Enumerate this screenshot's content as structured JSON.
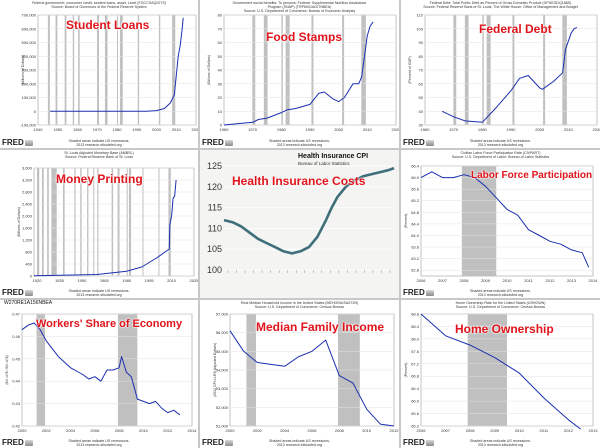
{
  "fred_label": "FRED",
  "footer_text": "Shaded areas indicate US recessions.\n2013 research.stlouisfed.org",
  "colors": {
    "line": "#1c2fb0",
    "recession": "#c0c0c0",
    "headline": "#e0141b",
    "cpi_line": "#3f6f7a"
  },
  "chart_data": [
    {
      "id": "student",
      "type": "line",
      "headline": "Student Loans",
      "header": "Federal government; consumer credit, student loans, asset, Level (FGCCSAQ027S)\nSource: Board of Governors of the Federal Reserve System",
      "ylabel": "(Millions of Dollars)",
      "x_ticks": [
        "1940",
        "1950",
        "1960",
        "1970",
        "1980",
        "1990",
        "2000",
        "2010",
        "2020"
      ],
      "y_ticks": [
        "-100,000",
        "0",
        "100,000",
        "200,000",
        "300,000",
        "400,000",
        "500,000",
        "600,000",
        "700,000"
      ],
      "xlim": [
        1940,
        2020
      ],
      "ylim": [
        -100000,
        700000
      ],
      "recessions": [
        [
          1945,
          1946
        ],
        [
          1948.9,
          1949.8
        ],
        [
          1953.5,
          1954.4
        ],
        [
          1957.6,
          1958.3
        ],
        [
          1960.3,
          1961.1
        ],
        [
          1969.9,
          1970.9
        ],
        [
          1973.9,
          1975.2
        ],
        [
          1980,
          1980.5
        ],
        [
          1981.5,
          1982.9
        ],
        [
          1990.5,
          1991.2
        ],
        [
          2001.2,
          2001.9
        ],
        [
          2007.9,
          2009.5
        ]
      ],
      "x": [
        1946,
        1970,
        1995,
        2000,
        2004,
        2007,
        2009,
        2010,
        2011,
        2012,
        2013,
        2013.5
      ],
      "values": [
        0,
        0,
        0,
        5000,
        20000,
        60000,
        120000,
        260000,
        400000,
        480000,
        600000,
        680000
      ]
    },
    {
      "id": "food",
      "type": "line",
      "headline": "Food Stamps",
      "header": "Government social benefits: To persons: Federal: Supplemental Nutrition Assistance\nProgram (SNAP) (TRP6001A027NBEA)\nSource: U.S. Department of Commerce: Bureau of Economic Analysis",
      "ylabel": "(Billions of Dollars)",
      "x_ticks": [
        "1960",
        "1970",
        "1980",
        "1990",
        "2000",
        "2010",
        "2020"
      ],
      "y_ticks": [
        "0",
        "10",
        "20",
        "30",
        "40",
        "50",
        "60",
        "70",
        "80"
      ],
      "xlim": [
        1960,
        2020
      ],
      "ylim": [
        0,
        80
      ],
      "recessions": [
        [
          1969.9,
          1970.9
        ],
        [
          1973.9,
          1975.2
        ],
        [
          1980,
          1980.5
        ],
        [
          1981.5,
          1982.9
        ],
        [
          1990.5,
          1991.2
        ],
        [
          2001.2,
          2001.9
        ],
        [
          2007.9,
          2009.5
        ]
      ],
      "x": [
        1960,
        1965,
        1970,
        1972,
        1975,
        1980,
        1982,
        1985,
        1990,
        1993,
        1995,
        1998,
        2000,
        2002,
        2005,
        2007,
        2008,
        2009,
        2010,
        2011,
        2012
      ],
      "values": [
        0,
        1,
        2,
        4,
        5,
        9,
        11,
        12,
        15,
        23,
        24,
        19,
        17,
        20,
        30,
        30,
        35,
        50,
        65,
        72,
        75
      ]
    },
    {
      "id": "debt",
      "type": "line",
      "headline": "Federal Debt",
      "header": "Federal Debt: Total Public Debt as Percent of Gross Domestic Product (GFDEGDQ188S)\nSource: Federal Reserve Bank of St. Louis, The White House: Office of Management and Budget",
      "ylabel": "(Percent of GDP)",
      "x_ticks": [
        "1960",
        "1970",
        "1980",
        "1990",
        "2000",
        "2010",
        "2020"
      ],
      "y_ticks": [
        "30",
        "40",
        "50",
        "60",
        "70",
        "80",
        "90",
        "100",
        "110"
      ],
      "xlim": [
        1960,
        2020
      ],
      "ylim": [
        30,
        110
      ],
      "recessions": [
        [
          1969.9,
          1970.9
        ],
        [
          1973.9,
          1975.2
        ],
        [
          1980,
          1980.5
        ],
        [
          1981.5,
          1982.9
        ],
        [
          1990.5,
          1991.2
        ],
        [
          2001.2,
          2001.9
        ],
        [
          2007.9,
          2009.5
        ]
      ],
      "x": [
        1966,
        1970,
        1974,
        1980,
        1985,
        1990,
        1993,
        1996,
        2000,
        2001,
        2005,
        2008,
        2009,
        2011,
        2012,
        2013
      ],
      "values": [
        40,
        36,
        33,
        32,
        43,
        55,
        64,
        66,
        57,
        56,
        62,
        68,
        85,
        97,
        100,
        101
      ]
    },
    {
      "id": "money",
      "type": "line",
      "headline": "Money Printing",
      "header": "St. Louis Adjusted Monetary Base (AMBSL)\nSource: Federal Reserve Bank of St. Louis",
      "ylabel": "(Billions of Dollars)",
      "x_ticks": [
        "1920",
        "1935",
        "1950",
        "1965",
        "1980",
        "1995",
        "2010",
        "2025"
      ],
      "y_ticks": [
        "0",
        "400",
        "800",
        "1,200",
        "1,600",
        "2,000",
        "2,400",
        "2,800",
        "3,200",
        "3,600"
      ],
      "xlim": [
        1918,
        2025
      ],
      "ylim": [
        0,
        3600
      ],
      "recessions": [
        [
          1920,
          1921.5
        ],
        [
          1923.3,
          1924.5
        ],
        [
          1926.8,
          1927.9
        ],
        [
          1929.6,
          1933.2
        ],
        [
          1937.4,
          1938.5
        ],
        [
          1945,
          1945.8
        ],
        [
          1948.9,
          1949.8
        ],
        [
          1953.5,
          1954.4
        ],
        [
          1957.6,
          1958.3
        ],
        [
          1960.3,
          1961.1
        ],
        [
          1969.9,
          1970.9
        ],
        [
          1973.9,
          1975.2
        ],
        [
          1980,
          1980.5
        ],
        [
          1981.5,
          1982.9
        ],
        [
          1990.5,
          1991.2
        ],
        [
          2001.2,
          2001.9
        ],
        [
          2007.9,
          2009.5
        ]
      ],
      "x": [
        1918,
        1940,
        1960,
        1980,
        1990,
        2000,
        2007,
        2008.5,
        2008.8,
        2009,
        2010,
        2011,
        2012,
        2013
      ],
      "values": [
        10,
        30,
        50,
        160,
        300,
        600,
        850,
        900,
        1700,
        1750,
        2000,
        2600,
        2650,
        3200
      ]
    },
    {
      "id": "cpi",
      "type": "line",
      "headline": "Health Insurance Costs",
      "title": "Health Insurance CPI",
      "subtitle": "Bureau of Labor Statistics",
      "y_ticks": [
        "100",
        "105",
        "110",
        "115",
        "120",
        "125"
      ],
      "ylim": [
        100,
        125
      ],
      "x": [
        0,
        3,
        6,
        9,
        12,
        15,
        18,
        21,
        24,
        27,
        30,
        33,
        36,
        38,
        40,
        43,
        46,
        49,
        52,
        55,
        58,
        60
      ],
      "values": [
        112,
        111.5,
        110.5,
        109,
        107.5,
        106.5,
        105.5,
        104.5,
        104,
        104.5,
        105.5,
        108,
        112,
        115,
        117.5,
        120,
        121.5,
        122.5,
        123,
        123.5,
        124,
        124.5
      ]
    },
    {
      "id": "lfp",
      "type": "line",
      "headline": "Labor Force Participation",
      "header": "Civilian Labor Force Participation Rate (CIVPART)\nSource: U.S. Department of Labor: Bureau of Labor Statistics",
      "ylabel": "(Percent)",
      "x_ticks": [
        "2006",
        "2007",
        "2008",
        "2009",
        "2010",
        "2011",
        "2012",
        "2013",
        "2014"
      ],
      "y_ticks": [
        "62.8",
        "63.2",
        "63.6",
        "64.0",
        "64.4",
        "64.8",
        "65.2",
        "65.6",
        "66.0",
        "66.4"
      ],
      "xlim": [
        2006,
        2014
      ],
      "ylim": [
        62.6,
        66.4
      ],
      "recessions": [
        [
          2007.9,
          2009.5
        ]
      ],
      "x": [
        2006,
        2006.5,
        2007,
        2007.5,
        2008,
        2008.5,
        2009,
        2009.5,
        2010,
        2010.5,
        2011,
        2011.5,
        2012,
        2012.5,
        2013,
        2013.5,
        2013.8
      ],
      "values": [
        66.0,
        66.2,
        66.0,
        66.0,
        66.1,
        66.0,
        65.7,
        65.3,
        64.9,
        64.7,
        64.2,
        64.0,
        63.8,
        63.7,
        63.5,
        63.4,
        62.9
      ]
    },
    {
      "id": "workers",
      "type": "line",
      "headline": "Workers' Share of Economy",
      "header": "W270RE1A156NBEA",
      "ylabel": "(Bil. of $ / Bil. of $)",
      "x_ticks": [
        "2000",
        "2002",
        "2004",
        "2006",
        "2008",
        "2010",
        "2012",
        "2014"
      ],
      "y_ticks": [
        "0.42",
        "0.43",
        "0.44",
        "0.45",
        "0.46",
        "0.47"
      ],
      "xlim": [
        2000,
        2014
      ],
      "ylim": [
        0.42,
        0.47
      ],
      "recessions": [
        [
          2001.2,
          2001.9
        ],
        [
          2007.9,
          2009.5
        ]
      ],
      "x": [
        2000,
        2000.5,
        2001,
        2001.5,
        2002,
        2003,
        2004,
        2005,
        2005.5,
        2006,
        2006.5,
        2007,
        2007.5,
        2008,
        2008.2,
        2008.6,
        2009,
        2009.5,
        2010,
        2010.5,
        2011,
        2011.5,
        2012,
        2012.5,
        2013
      ],
      "values": [
        0.463,
        0.465,
        0.466,
        0.463,
        0.458,
        0.451,
        0.446,
        0.443,
        0.441,
        0.442,
        0.44,
        0.445,
        0.445,
        0.446,
        0.451,
        0.444,
        0.442,
        0.432,
        0.431,
        0.43,
        0.431,
        0.428,
        0.426,
        0.427,
        0.425
      ]
    },
    {
      "id": "income",
      "type": "line",
      "headline": "Median Family Income",
      "header": "Real Median Household Income in the United States (MEHOINUSA672N)\nSource: U.S. Department of Commerce: Census Bureau",
      "ylabel": "(2012 CPI-U-RS Adjusted Dollars)",
      "x_ticks": [
        "2000",
        "2002",
        "2004",
        "2006",
        "2008",
        "2010",
        "2012"
      ],
      "y_ticks": [
        "51,000",
        "52,000",
        "53,000",
        "54,000",
        "55,000",
        "56,000",
        "57,000"
      ],
      "xlim": [
        2000,
        2012
      ],
      "ylim": [
        51000,
        57000
      ],
      "recessions": [
        [
          2001.2,
          2001.9
        ],
        [
          2007.9,
          2009.5
        ]
      ],
      "x": [
        2000,
        2001,
        2002,
        2003,
        2004,
        2005,
        2006,
        2007,
        2008,
        2009,
        2010,
        2011,
        2012
      ],
      "values": [
        56100,
        55000,
        54400,
        54300,
        54200,
        54700,
        55000,
        55600,
        53700,
        53300,
        51900,
        51100,
        51000
      ]
    },
    {
      "id": "home",
      "type": "line",
      "headline": "Home Ownership",
      "header": "Home Ownership Rate for the United States (USHOWN)\nSource: U.S. Department of Commerce: Census Bureau",
      "ylabel": "(Percent)",
      "x_ticks": [
        "2006",
        "2007",
        "2008",
        "2009",
        "2010",
        "2011",
        "2012",
        "2013"
      ],
      "y_ticks": [
        "65.2",
        "65.6",
        "66.0",
        "66.4",
        "66.8",
        "67.2",
        "67.6",
        "68.0",
        "68.4",
        "68.8"
      ],
      "xlim": [
        2006,
        2013
      ],
      "ylim": [
        65.2,
        68.8
      ],
      "recessions": [
        [
          2007.9,
          2009.5
        ]
      ],
      "x": [
        2006,
        2007,
        2008,
        2009,
        2010,
        2011,
        2012,
        2012.5
      ],
      "values": [
        68.8,
        68.1,
        67.8,
        67.4,
        66.9,
        66.1,
        65.4,
        65.1
      ]
    }
  ]
}
